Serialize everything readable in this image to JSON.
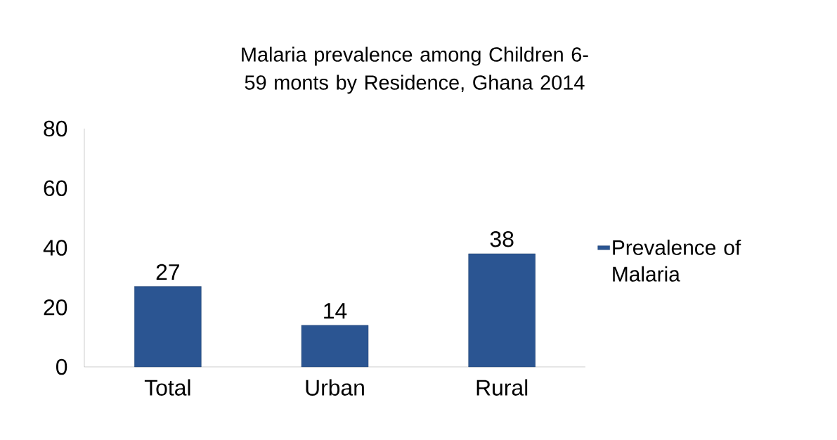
{
  "chart_data": {
    "type": "bar",
    "title": "Malaria prevalence among Children 6-59 monts by Residence, Ghana 2014",
    "categories": [
      "Total",
      "Urban",
      "Rural"
    ],
    "series": [
      {
        "name": "Prevalence of Malaria",
        "color": "#2b5592",
        "values": [
          27,
          14,
          38
        ]
      }
    ],
    "ylim": [
      0,
      80
    ],
    "yticks": [
      0,
      20,
      40,
      60,
      80
    ],
    "data_labels": true,
    "grid": false,
    "legend": "right"
  }
}
